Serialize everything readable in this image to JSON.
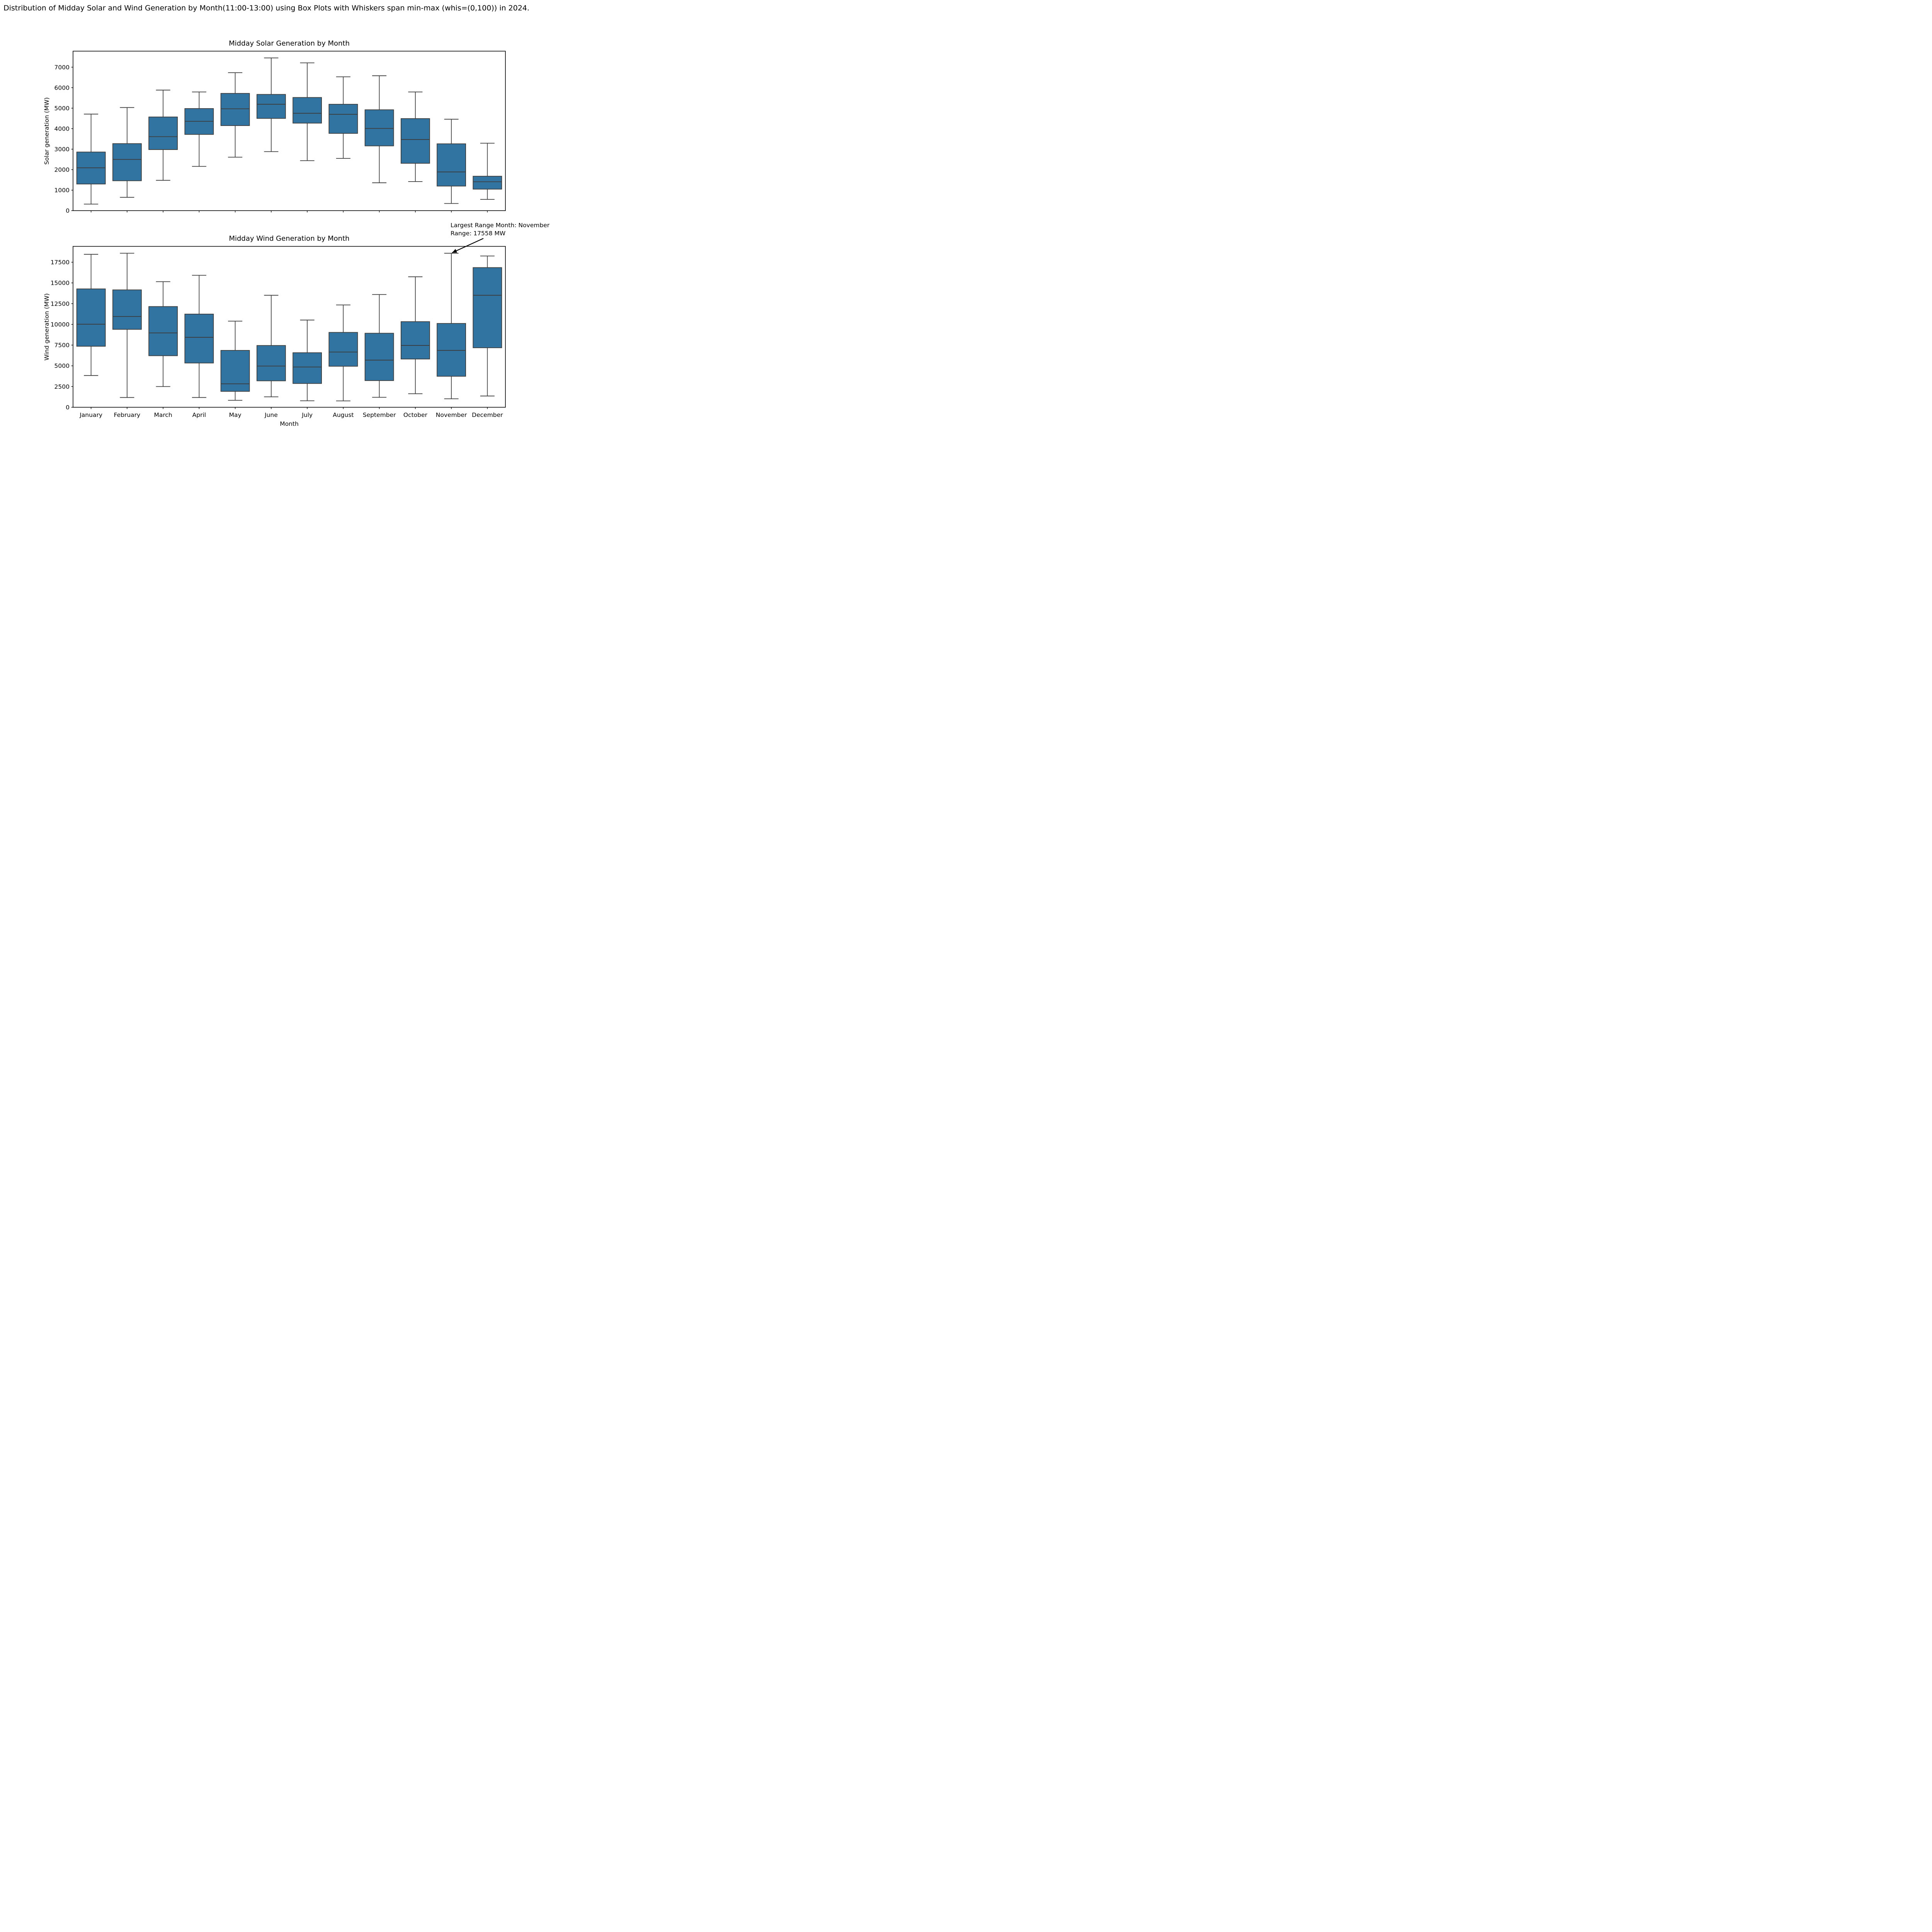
{
  "figure_title": "Distribution of Midday Solar and Wind Generation by Month(11:00-13:00) using Box Plots with Whiskers span min-max (whis=(0,100)) in 2024.",
  "xlabel": "Month",
  "months": [
    "January",
    "February",
    "March",
    "April",
    "May",
    "June",
    "July",
    "August",
    "September",
    "October",
    "November",
    "December"
  ],
  "annotation": {
    "line1": "Largest Range Month: November",
    "line2": "Range: 17558 MW",
    "range_mw": 17558,
    "target_month": "November"
  },
  "colors": {
    "box_fill": "#3274a1",
    "box_edge": "#3c3c3c",
    "whisker": "#3c3c3c",
    "median": "#3c3c3c",
    "spine": "#000000",
    "arrow": "#000000",
    "text": "#000000",
    "background": "#ffffff"
  },
  "chart_data": [
    {
      "type": "box",
      "title": "Midday Solar Generation by Month",
      "ylabel": "Solar generation (MW)",
      "xlabel": "Month",
      "categories": [
        "January",
        "February",
        "March",
        "April",
        "May",
        "June",
        "July",
        "August",
        "September",
        "October",
        "November",
        "December"
      ],
      "yticks": [
        0,
        1000,
        2000,
        3000,
        4000,
        5000,
        6000,
        7000
      ],
      "ylim": [
        0,
        7780
      ],
      "whiskers": "min-max",
      "stats": [
        {
          "label": "January",
          "min": 320,
          "q1": 1300,
          "median": 2090,
          "q3": 2860,
          "max": 4710
        },
        {
          "label": "February",
          "min": 650,
          "q1": 1460,
          "median": 2500,
          "q3": 3270,
          "max": 5030
        },
        {
          "label": "March",
          "min": 1480,
          "q1": 2980,
          "median": 3610,
          "q3": 4570,
          "max": 5880
        },
        {
          "label": "April",
          "min": 2160,
          "q1": 3720,
          "median": 4360,
          "q3": 4980,
          "max": 5790
        },
        {
          "label": "May",
          "min": 2610,
          "q1": 4150,
          "median": 4970,
          "q3": 5720,
          "max": 6730
        },
        {
          "label": "June",
          "min": 2880,
          "q1": 4500,
          "median": 5190,
          "q3": 5670,
          "max": 7450
        },
        {
          "label": "July",
          "min": 2440,
          "q1": 4270,
          "median": 4750,
          "q3": 5520,
          "max": 7210
        },
        {
          "label": "August",
          "min": 2550,
          "q1": 3770,
          "median": 4700,
          "q3": 5190,
          "max": 6530
        },
        {
          "label": "September",
          "min": 1360,
          "q1": 3160,
          "median": 4010,
          "q3": 4920,
          "max": 6580
        },
        {
          "label": "October",
          "min": 1420,
          "q1": 2310,
          "median": 3470,
          "q3": 4490,
          "max": 5790
        },
        {
          "label": "November",
          "min": 350,
          "q1": 1200,
          "median": 1890,
          "q3": 3260,
          "max": 4460
        },
        {
          "label": "December",
          "min": 550,
          "q1": 1050,
          "median": 1410,
          "q3": 1680,
          "max": 3290
        }
      ]
    },
    {
      "type": "box",
      "title": "Midday Wind Generation by Month",
      "ylabel": "Wind generation (MW)",
      "xlabel": "Month",
      "categories": [
        "January",
        "February",
        "March",
        "April",
        "May",
        "June",
        "July",
        "August",
        "September",
        "October",
        "November",
        "December"
      ],
      "yticks": [
        0,
        2500,
        5000,
        7500,
        10000,
        12500,
        15000,
        17500
      ],
      "ylim": [
        0,
        19410
      ],
      "whiskers": "min-max",
      "stats": [
        {
          "label": "January",
          "min": 3830,
          "q1": 7360,
          "median": 10020,
          "q3": 14280,
          "max": 18450
        },
        {
          "label": "February",
          "min": 1180,
          "q1": 9400,
          "median": 10950,
          "q3": 14160,
          "max": 18580
        },
        {
          "label": "March",
          "min": 2500,
          "q1": 6220,
          "median": 8970,
          "q3": 12150,
          "max": 15150
        },
        {
          "label": "April",
          "min": 1180,
          "q1": 5340,
          "median": 8440,
          "q3": 11240,
          "max": 15920
        },
        {
          "label": "May",
          "min": 840,
          "q1": 1920,
          "median": 2830,
          "q3": 6860,
          "max": 10390
        },
        {
          "label": "June",
          "min": 1260,
          "q1": 3190,
          "median": 4970,
          "q3": 7450,
          "max": 13510
        },
        {
          "label": "July",
          "min": 780,
          "q1": 2870,
          "median": 4860,
          "q3": 6580,
          "max": 10520
        },
        {
          "label": "August",
          "min": 770,
          "q1": 4950,
          "median": 6660,
          "q3": 9030,
          "max": 12340
        },
        {
          "label": "September",
          "min": 1200,
          "q1": 3220,
          "median": 5690,
          "q3": 8930,
          "max": 13600
        },
        {
          "label": "October",
          "min": 1630,
          "q1": 5820,
          "median": 7460,
          "q3": 10330,
          "max": 15740
        },
        {
          "label": "November",
          "min": 1020,
          "q1": 3740,
          "median": 6860,
          "q3": 10110,
          "max": 18578
        },
        {
          "label": "December",
          "min": 1360,
          "q1": 7180,
          "median": 13510,
          "q3": 16850,
          "max": 18250
        }
      ]
    }
  ]
}
